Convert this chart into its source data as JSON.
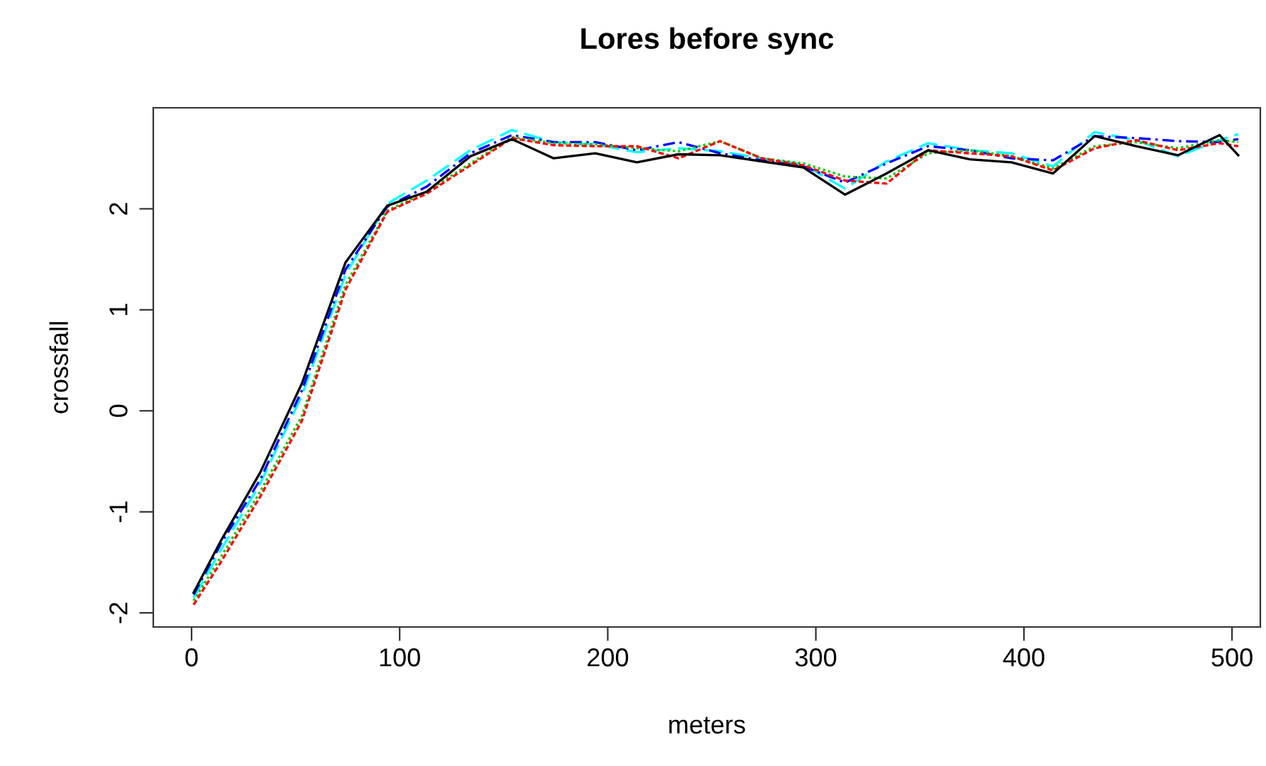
{
  "chart_data": {
    "type": "line",
    "title": "Lores before sync",
    "xlabel": "meters",
    "ylabel": "crossfall",
    "x": [
      1,
      14,
      33,
      53,
      74,
      94,
      113,
      134,
      154,
      174,
      194,
      214,
      234,
      254,
      274,
      294,
      314,
      334,
      354,
      374,
      394,
      414,
      434,
      454,
      474,
      494,
      503
    ],
    "xlim": [
      -18.4,
      513.6
    ],
    "ylim": [
      -2.14,
      3.0
    ],
    "xticks": [
      0,
      100,
      200,
      300,
      400,
      500
    ],
    "yticks": [
      -2,
      -1,
      0,
      1,
      2
    ],
    "grid": false,
    "legend": false,
    "marker": "none",
    "series": [
      {
        "color": "#000000",
        "line_style": "solid",
        "values": [
          -1.8,
          -1.29,
          -0.61,
          0.27,
          1.47,
          2.03,
          2.17,
          2.52,
          2.69,
          2.5,
          2.55,
          2.46,
          2.54,
          2.53,
          2.47,
          2.41,
          2.14,
          2.35,
          2.58,
          2.49,
          2.46,
          2.35,
          2.72,
          2.62,
          2.53,
          2.73,
          2.53
        ]
      },
      {
        "color": "#ff0000",
        "line_style": "dashed",
        "values": [
          -1.92,
          -1.5,
          -0.85,
          -0.1,
          1.2,
          1.97,
          2.15,
          2.43,
          2.7,
          2.63,
          2.62,
          2.62,
          2.5,
          2.67,
          2.5,
          2.43,
          2.28,
          2.25,
          2.58,
          2.55,
          2.52,
          2.38,
          2.6,
          2.68,
          2.58,
          2.65,
          2.62
        ]
      },
      {
        "color": "#00cd00",
        "line_style": "dotted",
        "values": [
          -1.88,
          -1.45,
          -0.8,
          -0.05,
          1.25,
          1.98,
          2.17,
          2.45,
          2.71,
          2.65,
          2.64,
          2.6,
          2.57,
          2.67,
          2.5,
          2.45,
          2.32,
          2.3,
          2.55,
          2.58,
          2.52,
          2.4,
          2.62,
          2.66,
          2.6,
          2.68,
          2.66
        ]
      },
      {
        "color": "#0000ff",
        "line_style": "dashdot",
        "values": [
          -1.82,
          -1.32,
          -0.68,
          0.2,
          1.4,
          2.02,
          2.22,
          2.55,
          2.73,
          2.66,
          2.66,
          2.58,
          2.66,
          2.55,
          2.48,
          2.42,
          2.26,
          2.45,
          2.62,
          2.58,
          2.5,
          2.48,
          2.72,
          2.7,
          2.67,
          2.66,
          2.69
        ]
      },
      {
        "color": "#00ffff",
        "line_style": "longdash",
        "values": [
          -1.85,
          -1.38,
          -0.72,
          0.15,
          1.35,
          2.05,
          2.28,
          2.58,
          2.78,
          2.66,
          2.64,
          2.56,
          2.6,
          2.57,
          2.5,
          2.44,
          2.2,
          2.47,
          2.65,
          2.58,
          2.55,
          2.42,
          2.76,
          2.68,
          2.52,
          2.68,
          2.74
        ]
      }
    ]
  }
}
